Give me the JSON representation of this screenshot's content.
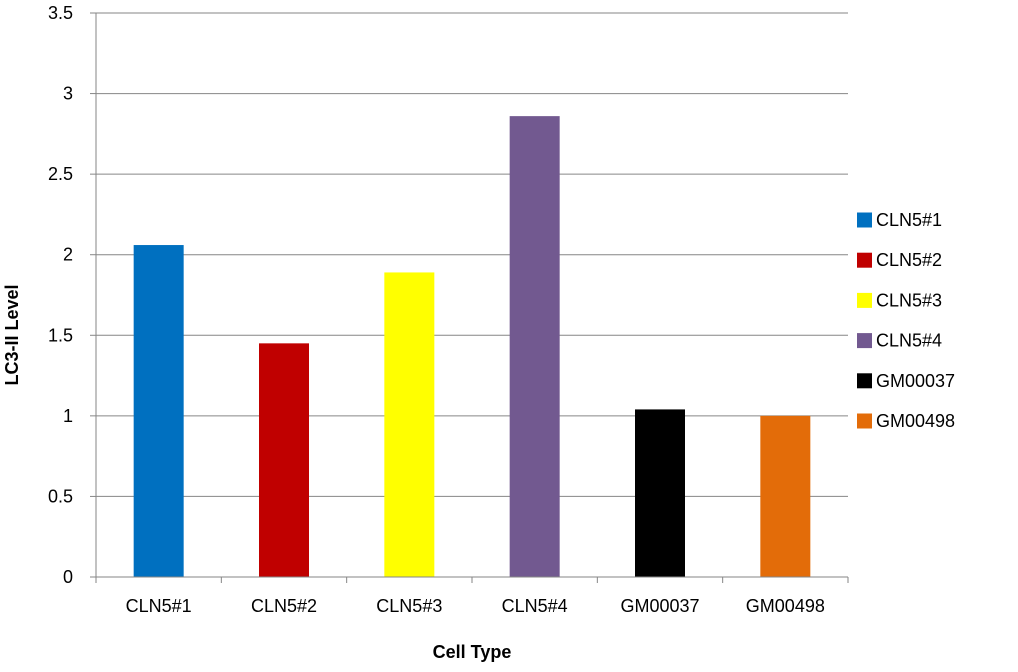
{
  "chart_data": {
    "type": "bar",
    "title": "",
    "xlabel": "Cell Type",
    "ylabel": "LC3-II Level",
    "categories": [
      "CLN5#1",
      "CLN5#2",
      "CLN5#3",
      "CLN5#4",
      "GM00037",
      "GM00498"
    ],
    "values": [
      2.06,
      1.45,
      1.89,
      2.86,
      1.04,
      1.0
    ],
    "colors": [
      "#0070c0",
      "#c00000",
      "#ffff00",
      "#725990",
      "#000000",
      "#e36c09"
    ],
    "ylim": [
      0,
      3.5
    ],
    "yticks": [
      "0",
      "0.5",
      "1",
      "1.5",
      "2",
      "2.5",
      "3",
      "3.5"
    ],
    "grid": true,
    "legend": {
      "position": "right",
      "entries": [
        "CLN5#1",
        "CLN5#2",
        "CLN5#3",
        "CLN5#4",
        "GM00037",
        "GM00498"
      ]
    }
  }
}
